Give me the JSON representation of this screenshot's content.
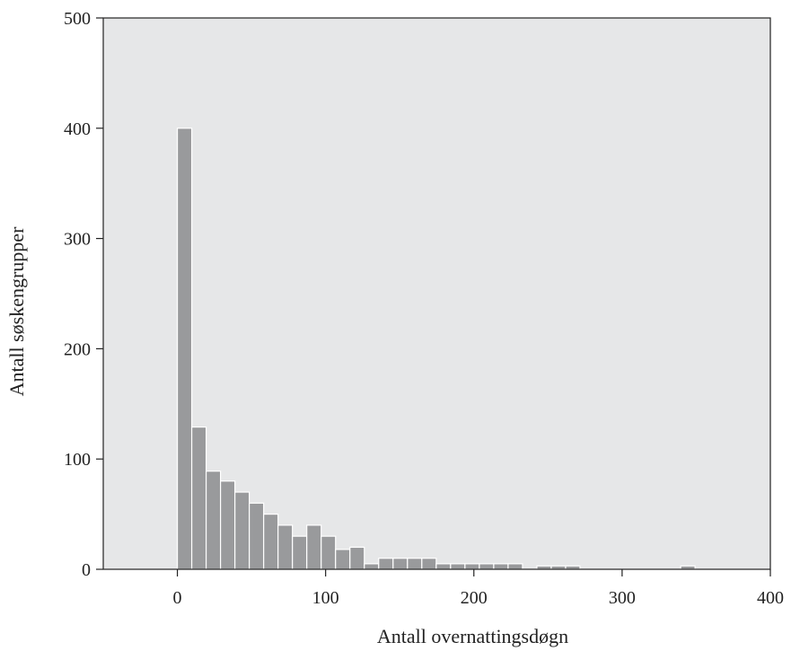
{
  "chart_data": {
    "type": "bar",
    "subtype": "histogram",
    "xlabel": "Antall overnattingsdøgn",
    "ylabel": "Antall søskengrupper",
    "xlim": [
      -50,
      400
    ],
    "ylim": [
      0,
      500
    ],
    "xticks": [
      "0",
      "100",
      "200",
      "300",
      "400"
    ],
    "yticks": [
      "0",
      "100",
      "200",
      "300",
      "400",
      "500"
    ],
    "grid": false,
    "bin_width": 9.7,
    "bins": [
      {
        "x0": 0,
        "value": 400
      },
      {
        "x0": 9.7,
        "value": 129
      },
      {
        "x0": 19.4,
        "value": 89
      },
      {
        "x0": 29.1,
        "value": 80
      },
      {
        "x0": 38.8,
        "value": 70
      },
      {
        "x0": 48.5,
        "value": 60
      },
      {
        "x0": 58.2,
        "value": 50
      },
      {
        "x0": 67.9,
        "value": 40
      },
      {
        "x0": 77.6,
        "value": 30
      },
      {
        "x0": 87.3,
        "value": 40
      },
      {
        "x0": 97.0,
        "value": 30
      },
      {
        "x0": 106.7,
        "value": 18
      },
      {
        "x0": 116.4,
        "value": 20
      },
      {
        "x0": 126.1,
        "value": 5
      },
      {
        "x0": 135.8,
        "value": 10
      },
      {
        "x0": 145.5,
        "value": 10
      },
      {
        "x0": 155.2,
        "value": 10
      },
      {
        "x0": 164.9,
        "value": 10
      },
      {
        "x0": 174.6,
        "value": 5
      },
      {
        "x0": 184.3,
        "value": 5
      },
      {
        "x0": 194.0,
        "value": 5
      },
      {
        "x0": 203.7,
        "value": 5
      },
      {
        "x0": 213.4,
        "value": 5
      },
      {
        "x0": 223.1,
        "value": 5
      },
      {
        "x0": 242.5,
        "value": 3
      },
      {
        "x0": 252.2,
        "value": 3
      },
      {
        "x0": 261.9,
        "value": 3
      },
      {
        "x0": 339.5,
        "value": 3
      }
    ],
    "colors": {
      "plot_background": "#e6e7e8",
      "bar_fill": "#999a9c",
      "axis": "#222222"
    }
  }
}
